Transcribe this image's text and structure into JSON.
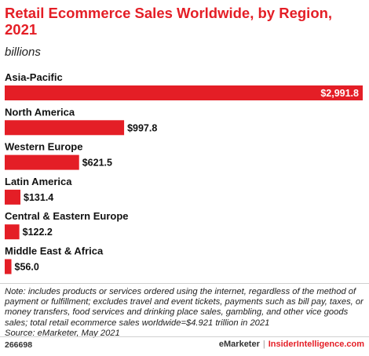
{
  "chart_data": {
    "type": "bar",
    "orientation": "horizontal",
    "title": "Retail Ecommerce Sales Worldwide, by Region, 2021",
    "subtitle": "billions",
    "categories": [
      "Asia-Pacific",
      "North America",
      "Western Europe",
      "Latin America",
      "Central & Eastern Europe",
      "Middle East & Africa"
    ],
    "values": [
      2991.8,
      997.8,
      621.5,
      131.4,
      122.2,
      56.0
    ],
    "value_labels": [
      "$2,991.8",
      "$997.8",
      "$621.5",
      "$131.4",
      "$122.2",
      "$56.0"
    ],
    "xlim": [
      0,
      2991.8
    ],
    "grid": false,
    "bar_color": "#e41e26"
  },
  "note": "Note: includes products or services ordered using the internet, regardless of the method of payment or fulfillment; excludes travel and event tickets, payments such as bill pay, taxes, or money transfers, food services and drinking place sales, gambling, and other vice goods sales; total retail ecommerce sales worldwide=$4.921 trillion in 2021",
  "source": "Source: eMarketer, May 2021",
  "footer": {
    "chart_id": "266698",
    "brand": "eMarketer",
    "separator": "|",
    "site": "InsiderIntelligence.com"
  }
}
